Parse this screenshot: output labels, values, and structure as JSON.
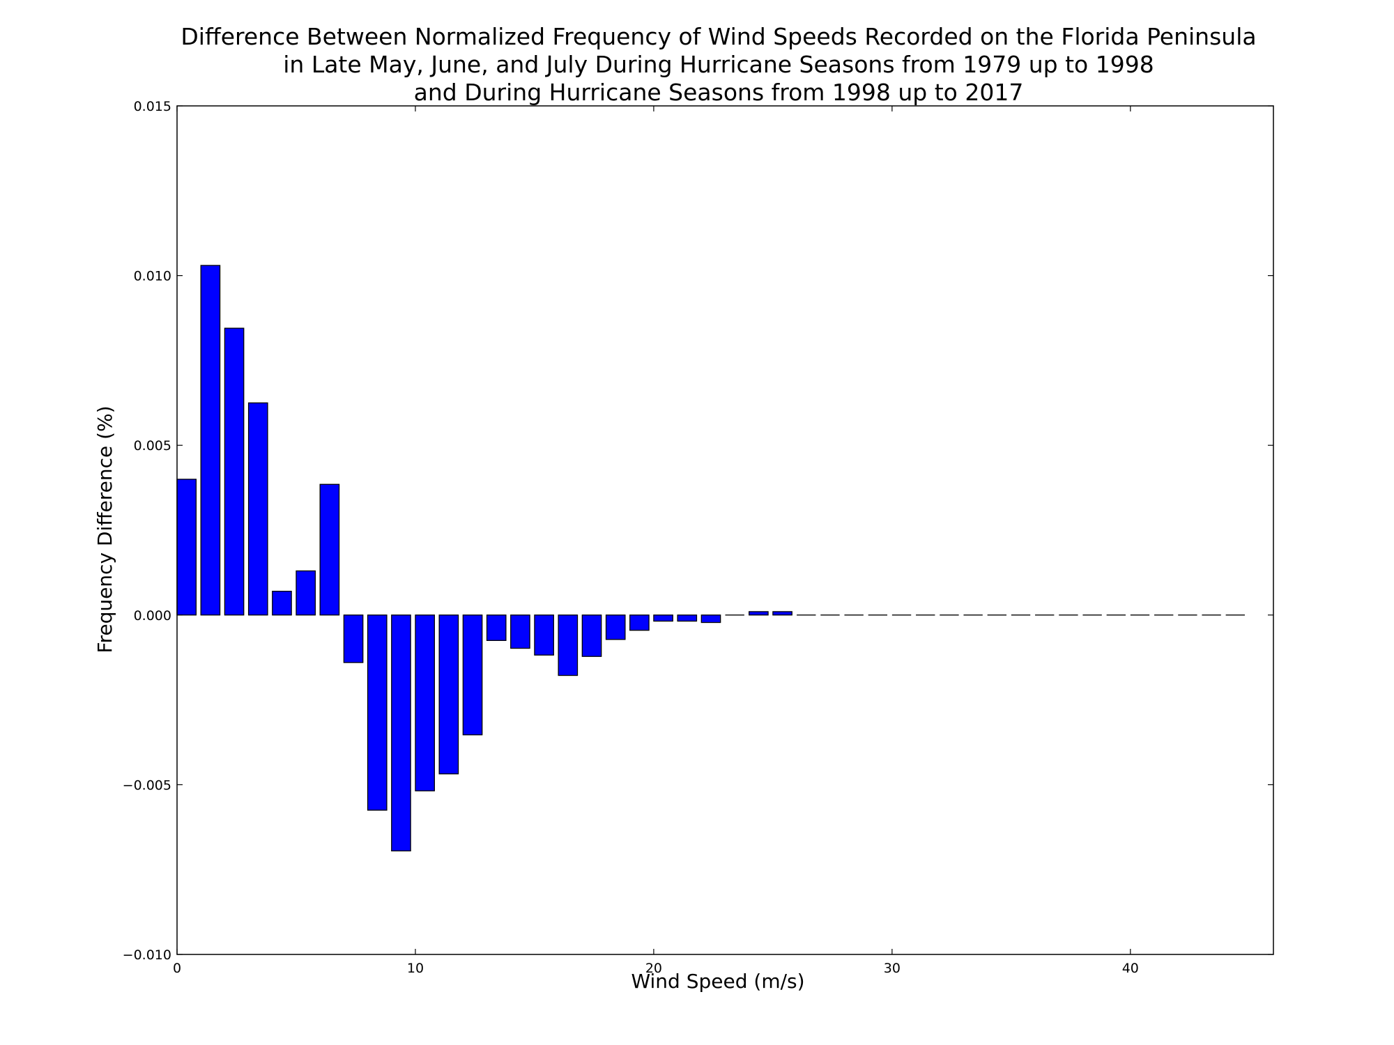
{
  "chart_data": {
    "type": "bar",
    "title": [
      "Difference Between Normalized Frequency of Wind Speeds Recorded on the Florida Peninsula",
      "in Late May, June, and July During Hurricane Seasons from 1979 up to 1998",
      "and During Hurricane Seasons from 1998 up to 2017"
    ],
    "xlabel": "Wind Speed (m/s)",
    "ylabel": "Frequency Difference (%)",
    "xlim": [
      0,
      46
    ],
    "ylim": [
      -0.01,
      0.015
    ],
    "xticks": [
      0,
      10,
      20,
      30,
      40
    ],
    "xtick_labels": [
      "0",
      "10",
      "20",
      "30",
      "40"
    ],
    "yticks": [
      -0.01,
      -0.005,
      0.0,
      0.005,
      0.01,
      0.015
    ],
    "ytick_labels": [
      "−0.010",
      "−0.005",
      "0.000",
      "0.005",
      "0.010",
      "0.015"
    ],
    "grid": false,
    "bar_color": "#0000ff",
    "bar_width": 0.8,
    "x": [
      0,
      1,
      2,
      3,
      4,
      5,
      6,
      7,
      8,
      9,
      10,
      11,
      12,
      13,
      14,
      15,
      16,
      17,
      18,
      19,
      20,
      21,
      22,
      23,
      24,
      25,
      26,
      27,
      28,
      29,
      30,
      31,
      32,
      33,
      34,
      35,
      36,
      37,
      38,
      39,
      40,
      41,
      42,
      43,
      44
    ],
    "values": [
      0.004,
      0.0103,
      0.00845,
      0.00625,
      0.0007,
      0.0013,
      0.00385,
      -0.0014,
      -0.00575,
      -0.00695,
      -0.00518,
      -0.00468,
      -0.00353,
      -0.00075,
      -0.00098,
      -0.00118,
      -0.00178,
      -0.00122,
      -0.00072,
      -0.00045,
      -0.00018,
      -0.00018,
      -0.00022,
      0.0,
      0.0001,
      0.0001,
      0,
      0,
      0,
      0,
      0,
      0,
      0,
      0,
      0,
      0,
      0,
      0,
      0,
      0,
      0,
      0,
      0,
      0,
      0
    ]
  }
}
